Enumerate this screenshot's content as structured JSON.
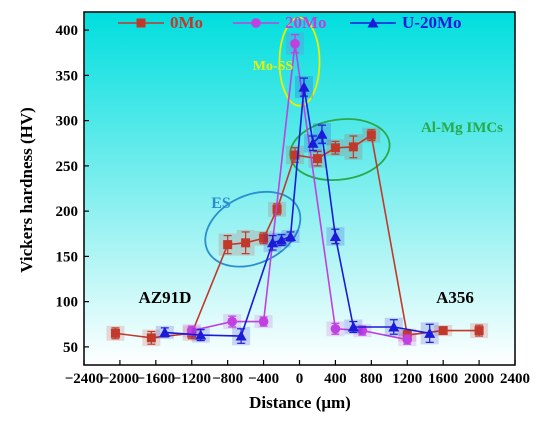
{
  "colors": {
    "s0": "#c0392b",
    "s20": "#c040e0",
    "su20": "#1a1ad8",
    "bg_top": "#00dede",
    "bg_bottom": "#ffffff",
    "ellipse_yellow": "#e8f000",
    "ellipse_green": "#2aa84a",
    "ellipse_blue": "#2a8fd0"
  },
  "chart_data": {
    "type": "line",
    "title": "",
    "xlabel": "Distance (μm)",
    "ylabel": "Vickers hardness (HV)",
    "xlim": [
      -2400,
      2400
    ],
    "ylim": [
      30,
      420
    ],
    "xticks": [
      -2400,
      -2000,
      -1600,
      -1200,
      -800,
      -400,
      0,
      400,
      800,
      1200,
      1600,
      2000,
      2400
    ],
    "yticks": [
      50,
      100,
      150,
      200,
      250,
      300,
      350,
      400
    ],
    "legend_position": "top",
    "series": [
      {
        "name": "0Mo",
        "marker": "square",
        "x": [
          -2050,
          -1650,
          -1200,
          -800,
          -600,
          -400,
          -250,
          -50,
          200,
          400,
          600,
          800,
          1200,
          1600,
          2000
        ],
        "y": [
          65,
          60,
          65,
          163,
          165,
          170,
          202,
          262,
          258,
          270,
          271,
          284,
          63,
          68,
          68
        ],
        "err": [
          6,
          7,
          6,
          10,
          12,
          6,
          6,
          8,
          8,
          7,
          12,
          6,
          5,
          4,
          6
        ]
      },
      {
        "name": "20Mo",
        "marker": "circle",
        "x": [
          -1200,
          -750,
          -400,
          -50,
          400,
          700,
          1200
        ],
        "y": [
          68,
          78,
          78,
          385,
          70,
          68,
          58
        ],
        "err": [
          5,
          6,
          5,
          10,
          6,
          5,
          5
        ]
      },
      {
        "name": "U-20Mo",
        "marker": "triangle",
        "x": [
          -1500,
          -1100,
          -650,
          -300,
          -200,
          -100,
          50,
          150,
          250,
          400,
          600,
          1050,
          1450
        ],
        "y": [
          66,
          63,
          62,
          165,
          168,
          172,
          337,
          275,
          285,
          172,
          72,
          72,
          65
        ],
        "err": [
          5,
          6,
          8,
          8,
          6,
          5,
          10,
          8,
          10,
          8,
          6,
          8,
          10
        ]
      }
    ],
    "annotations": [
      {
        "text": "Mo-SS",
        "color_key": "ellipse_yellow"
      },
      {
        "text": "Al-Mg IMCs",
        "color_key": "ellipse_green"
      },
      {
        "text": "ES",
        "color_key": "ellipse_blue"
      },
      {
        "text": "AZ91D",
        "color_key": "black"
      },
      {
        "text": "A356",
        "color_key": "black"
      }
    ]
  }
}
